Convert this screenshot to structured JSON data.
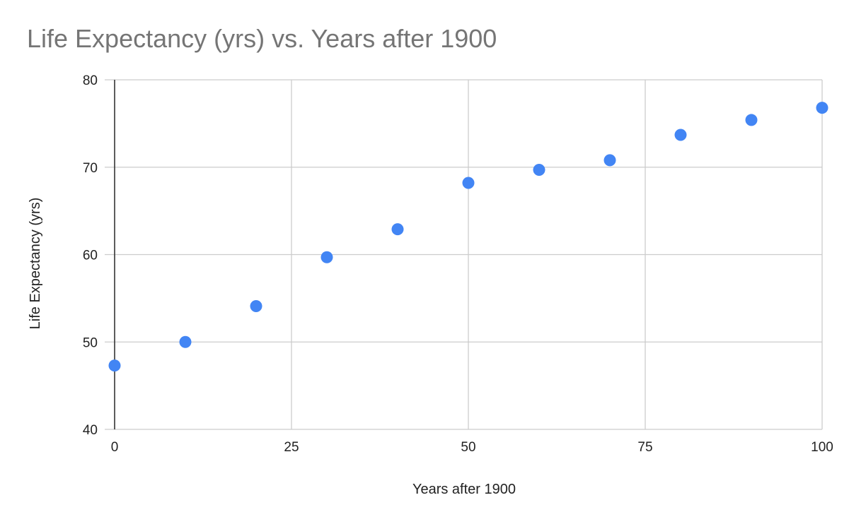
{
  "chart_data": {
    "type": "scatter",
    "title": "Life Expectancy (yrs) vs. Years after 1900",
    "xlabel": "Years after 1900",
    "ylabel": "Life Expectancy (yrs)",
    "xlim": [
      0,
      100
    ],
    "ylim": [
      40,
      80
    ],
    "xticks": [
      0,
      25,
      50,
      75,
      100
    ],
    "yticks": [
      40,
      50,
      60,
      70,
      80
    ],
    "grid": true,
    "legend": "none",
    "series": [
      {
        "color": "#4285f4",
        "points": [
          {
            "x": 0,
            "y": 47.3
          },
          {
            "x": 10,
            "y": 50.0
          },
          {
            "x": 20,
            "y": 54.1
          },
          {
            "x": 30,
            "y": 59.7
          },
          {
            "x": 40,
            "y": 62.9
          },
          {
            "x": 50,
            "y": 68.2
          },
          {
            "x": 60,
            "y": 69.7
          },
          {
            "x": 70,
            "y": 70.8
          },
          {
            "x": 80,
            "y": 73.7
          },
          {
            "x": 90,
            "y": 75.4
          },
          {
            "x": 100,
            "y": 76.8
          }
        ]
      }
    ]
  }
}
